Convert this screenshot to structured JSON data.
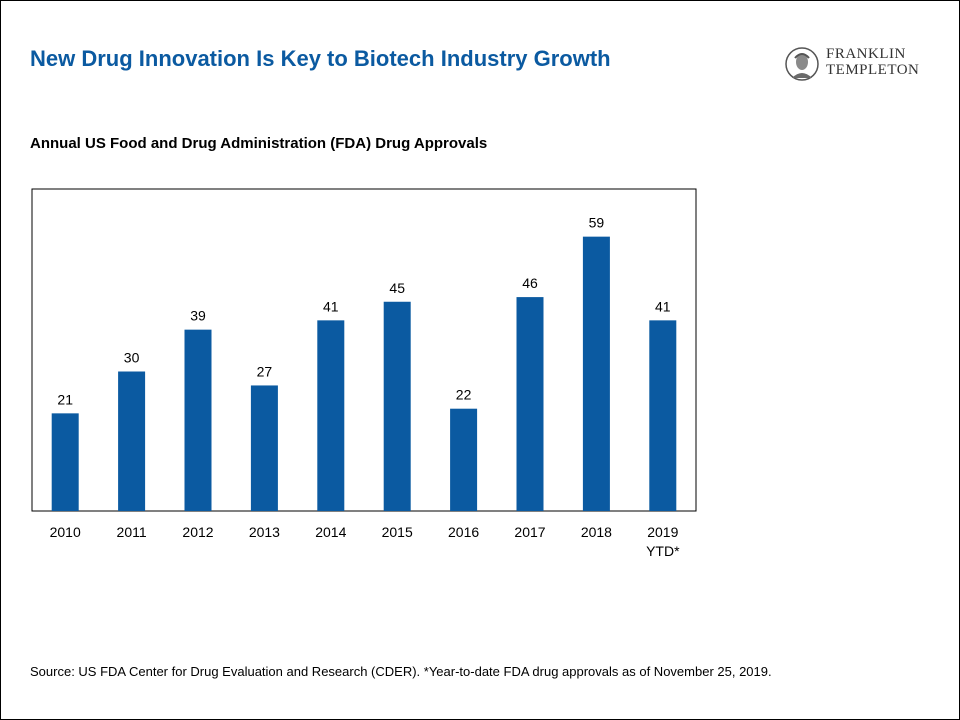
{
  "header": {
    "title": "New Drug Innovation Is Key to Biotech Industry Growth",
    "logo_line1": "FRANKLIN",
    "logo_line2": "TEMPLETON"
  },
  "colors": {
    "title": "#0b5aa1",
    "bar": "#0b5aa1"
  },
  "chart_data": {
    "type": "bar",
    "title": "Annual US Food and Drug Administration (FDA) Drug Approvals",
    "categories": [
      [
        "2010"
      ],
      [
        "2011"
      ],
      [
        "2012"
      ],
      [
        "2013"
      ],
      [
        "2014"
      ],
      [
        "2015"
      ],
      [
        "2016"
      ],
      [
        "2017"
      ],
      [
        "2018"
      ],
      [
        "2019",
        "YTD*"
      ]
    ],
    "values": [
      21,
      30,
      39,
      27,
      41,
      45,
      22,
      46,
      59,
      41
    ],
    "data_labels": true,
    "xlabel": "",
    "ylabel": "",
    "ylim": [
      0,
      65
    ],
    "grid": false,
    "legend": "none"
  },
  "footnote": "Source: US FDA Center for Drug Evaluation and Research (CDER). *Year-to-date FDA drug approvals as of November 25, 2019."
}
